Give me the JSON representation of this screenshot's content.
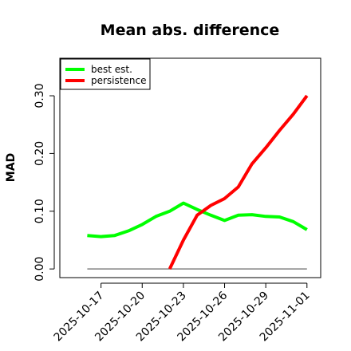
{
  "chart_data": {
    "type": "line",
    "title": "Mean abs. difference",
    "xlabel": "",
    "ylabel": "MAD",
    "x": [
      "2025-10-16",
      "2025-10-17",
      "2025-10-18",
      "2025-10-19",
      "2025-10-20",
      "2025-10-21",
      "2025-10-22",
      "2025-10-23",
      "2025-10-24",
      "2025-10-25",
      "2025-10-26",
      "2025-10-27",
      "2025-10-28",
      "2025-10-29",
      "2025-10-30",
      "2025-10-31",
      "2025-11-01"
    ],
    "xticks": [
      "2025-10-17",
      "2025-10-20",
      "2025-10-23",
      "2025-10-26",
      "2025-10-29",
      "2025-11-01"
    ],
    "xlim": [
      "2025-10-14",
      "2025-11-02"
    ],
    "yticks": [
      "0.00",
      "0.10",
      "0.20",
      "0.30"
    ],
    "ylim": [
      -0.015,
      0.365
    ],
    "series": [
      {
        "name": "best est.",
        "color": "#00ff00",
        "values": [
          0.058,
          0.056,
          0.058,
          0.066,
          0.077,
          0.091,
          0.1,
          0.114,
          0.103,
          0.093,
          0.084,
          0.093,
          0.094,
          0.091,
          0.09,
          0.082,
          0.068
        ]
      },
      {
        "name": "persistence",
        "color": "#ff0000",
        "values": [
          null,
          null,
          null,
          null,
          null,
          null,
          0.0,
          0.05,
          0.093,
          0.11,
          0.122,
          0.142,
          0.182,
          0.21,
          0.24,
          0.268,
          0.3
        ]
      }
    ],
    "reference_line": {
      "y": 0,
      "color": "#808080"
    },
    "legend_position": "top-left",
    "grid": false
  }
}
